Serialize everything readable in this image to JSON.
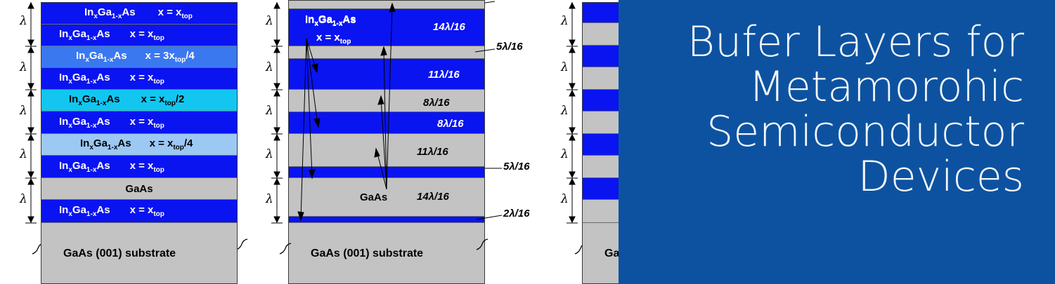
{
  "panel1": {
    "lambda_symbol": "λ",
    "layers": [
      {
        "name": "InxGa1-xAs",
        "composition": "x = xtop",
        "color": "#0a14f0"
      },
      {
        "name": "InxGa1-xAs",
        "composition": "x = xtop",
        "color": "#0a14f0"
      },
      {
        "name": "InxGa1-xAs",
        "composition": "x = 3xtop/4",
        "color": "#3a78f0"
      },
      {
        "name": "InxGa1-xAs",
        "composition": "x = xtop",
        "color": "#0a14f0"
      },
      {
        "name": "InxGa1-xAs",
        "composition": "x = xtop/2",
        "color": "#12c6f0"
      },
      {
        "name": "InxGa1-xAs",
        "composition": "x = xtop",
        "color": "#0a14f0"
      },
      {
        "name": "InxGa1-xAs",
        "composition": "x = xtop/4",
        "color": "#9cc8f4"
      },
      {
        "name": "InxGa1-xAs",
        "composition": "x = xtop",
        "color": "#0a14f0"
      },
      {
        "name": "GaAs",
        "composition": "",
        "color": "#c3c3c3"
      },
      {
        "name": "InxGa1-xAs",
        "composition": "x = xtop",
        "color": "#0a14f0"
      }
    ],
    "substrate": "GaAs (001) substrate"
  },
  "panel2": {
    "top_layer_name": "InxGa1-xAs",
    "top_layer_composition": "x = xtop",
    "labels": [
      "14λ/16",
      "5λ/16",
      "11λ/16",
      "8λ/16",
      "8λ/16",
      "11λ/16",
      "5λ/16",
      "14λ/16",
      "2λ/16"
    ],
    "gaas_label": "GaAs",
    "substrate": "GaAs (001) substrate"
  },
  "panel3": {
    "substrate_partial": "Ga"
  },
  "banner": {
    "title_lines": [
      "Bufer Layers for",
      "Metamorohic",
      "Semiconductor",
      "Devices"
    ],
    "background": "#0d52a0"
  },
  "colors": {
    "ingaas_blue": "#0a14f0",
    "gaas_gray": "#c3c3c3"
  }
}
